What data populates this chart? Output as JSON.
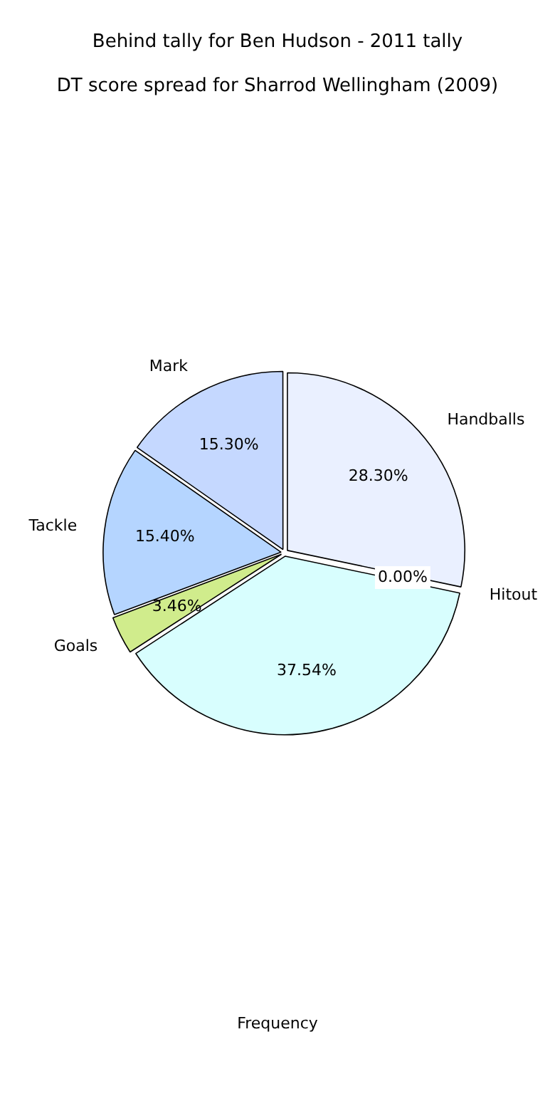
{
  "chart_data": {
    "type": "pie",
    "title": "Behind tally for Ben Hudson - 2011 tally",
    "subtitle": "DT score spread for Sharrod Wellingham (2009)",
    "xlabel": "Frequency",
    "categories": [
      "Handballs",
      "Hitout",
      null,
      "Goals",
      "Tackle",
      "Mark"
    ],
    "values": [
      28.3,
      0.0,
      37.54,
      3.46,
      15.4,
      15.3
    ],
    "value_labels": [
      "28.30%",
      "0.00%",
      "37.54%",
      "3.46%",
      "15.40%",
      "15.30%"
    ],
    "colors": [
      "#eaf0ff",
      "#e6e6e6",
      "#d8fefe",
      "#d0ec8c",
      "#b5d5ff",
      "#c5d8ff"
    ],
    "legend": false
  }
}
